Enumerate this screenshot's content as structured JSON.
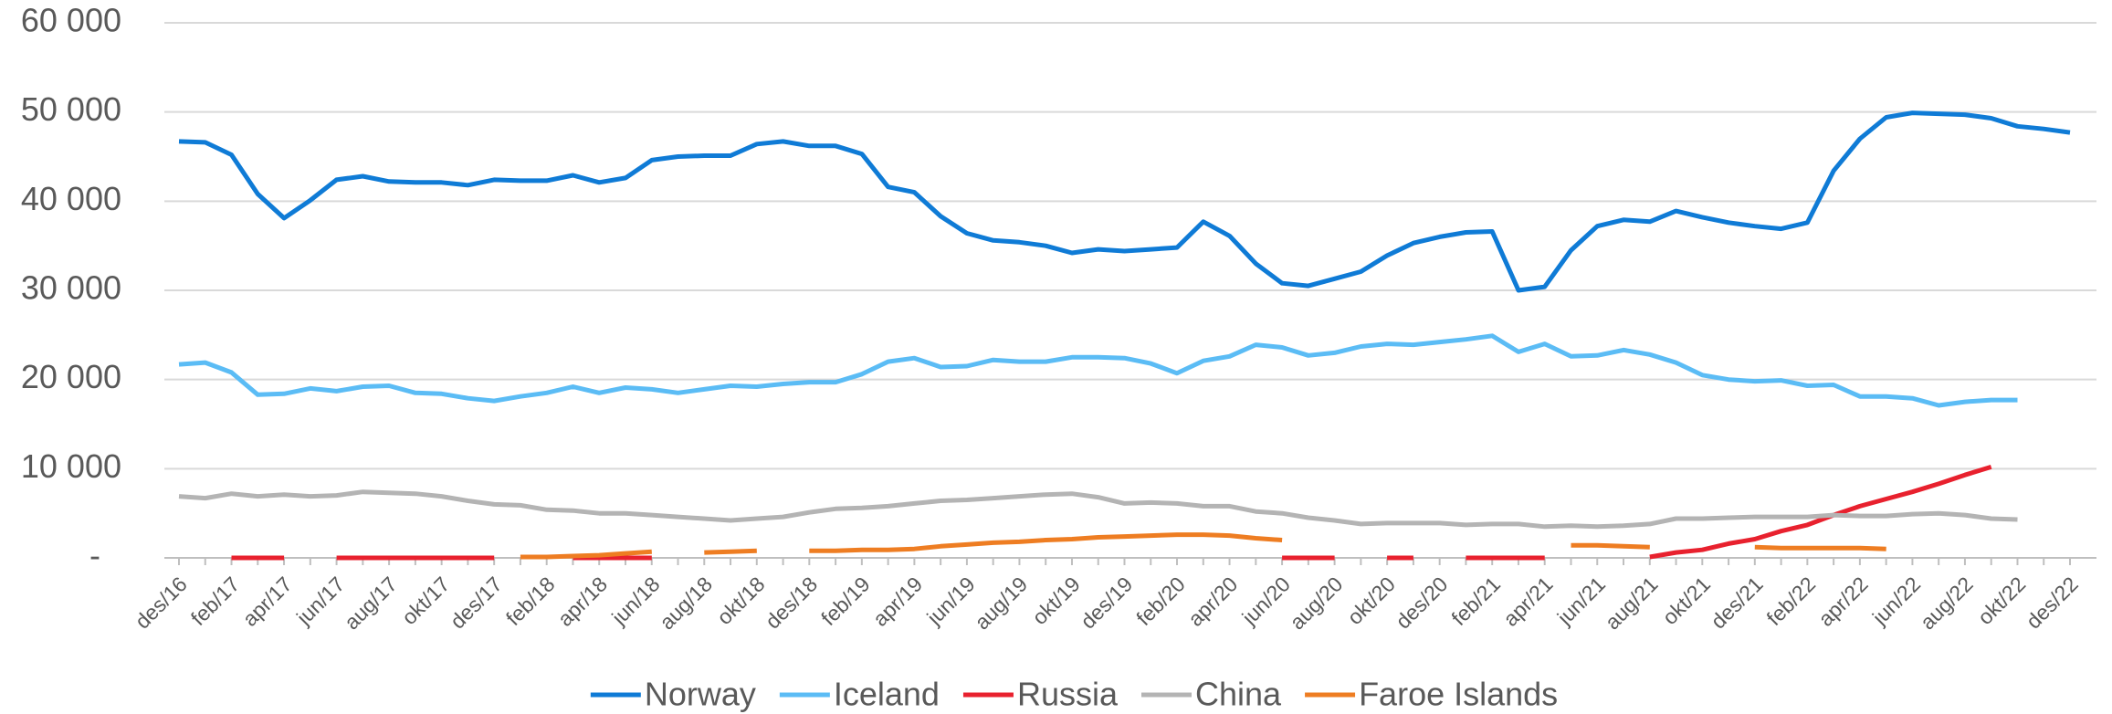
{
  "chart_data": {
    "type": "line",
    "categories": [
      "des/16",
      null,
      "feb/17",
      null,
      "apr/17",
      null,
      "jun/17",
      null,
      "aug/17",
      null,
      "okt/17",
      null,
      "des/17",
      null,
      "feb/18",
      null,
      "apr/18",
      null,
      "jun/18",
      null,
      "aug/18",
      null,
      "okt/18",
      null,
      "des/18",
      null,
      "feb/19",
      null,
      "apr/19",
      null,
      "jun/19",
      null,
      "aug/19",
      null,
      "okt/19",
      null,
      "des/19",
      null,
      "feb/20",
      null,
      "apr/20",
      null,
      "jun/20",
      null,
      "aug/20",
      null,
      "okt/20",
      null,
      "des/20",
      null,
      "feb/21",
      null,
      "apr/21",
      null,
      "jun/21",
      null,
      "aug/21",
      null,
      "okt/21",
      null,
      "des/21",
      null,
      "feb/22",
      null,
      "apr/22",
      null,
      "jun/22",
      null,
      "aug/22",
      null,
      "okt/22",
      null,
      "des/22"
    ],
    "series": [
      {
        "name": "Norway",
        "color": "#0f7bd6",
        "values": [
          46700,
          46600,
          45200,
          40800,
          38100,
          40100,
          42400,
          42800,
          42200,
          42100,
          42100,
          41800,
          42400,
          42300,
          42300,
          42900,
          42100,
          42600,
          44600,
          45000,
          45100,
          45100,
          46400,
          46700,
          46200,
          46200,
          45300,
          41600,
          41000,
          38300,
          36400,
          35600,
          35400,
          35000,
          34200,
          34600,
          34400,
          34600,
          34800,
          37700,
          36100,
          33000,
          30800,
          30500,
          31300,
          32100,
          33900,
          35300,
          36000,
          36500,
          36600,
          30000,
          30400,
          34500,
          37200,
          37900,
          37700,
          38900,
          38200,
          37600,
          37200,
          36900,
          37600,
          43400,
          47000,
          49400,
          49900,
          49800,
          49700,
          49300,
          48400,
          48100,
          47700
        ]
      },
      {
        "name": "Iceland",
        "color": "#5bbcf5",
        "values": [
          21700,
          21900,
          20800,
          18300,
          18400,
          19000,
          18700,
          19200,
          19300,
          18500,
          18400,
          17900,
          17600,
          18100,
          18500,
          19200,
          18500,
          19100,
          18900,
          18500,
          18900,
          19300,
          19200,
          19500,
          19700,
          19700,
          20600,
          22000,
          22400,
          21400,
          21500,
          22200,
          22000,
          22000,
          22500,
          22500,
          22400,
          21800,
          20700,
          22100,
          22600,
          23900,
          23600,
          22700,
          23000,
          23700,
          24000,
          23900,
          24200,
          24500,
          24900,
          23100,
          24000,
          22600,
          22700,
          23300,
          22800,
          21900,
          20500,
          20000,
          19800,
          19900,
          19300,
          19400,
          18100,
          18100,
          17900,
          17100,
          17500,
          17700,
          17700,
          null,
          null
        ]
      },
      {
        "name": "Russia",
        "color": "#e8212e",
        "values": [
          null,
          null,
          0,
          0,
          0,
          null,
          0,
          0,
          0,
          0,
          0,
          0,
          0,
          null,
          null,
          0,
          0,
          0,
          0,
          null,
          null,
          null,
          null,
          null,
          null,
          null,
          null,
          null,
          null,
          null,
          null,
          null,
          null,
          null,
          null,
          null,
          null,
          null,
          null,
          null,
          null,
          null,
          0,
          0,
          0,
          null,
          0,
          0,
          null,
          0,
          0,
          0,
          0,
          null,
          null,
          null,
          100,
          600,
          900,
          1600,
          2100,
          3000,
          3700,
          4800,
          5800,
          6600,
          7400,
          8300,
          9300,
          10200,
          null,
          null,
          null
        ]
      },
      {
        "name": "China",
        "color": "#b4b4b4",
        "values": [
          6900,
          6700,
          7200,
          6900,
          7100,
          6900,
          7000,
          7400,
          7300,
          7200,
          6900,
          6400,
          6000,
          5900,
          5400,
          5300,
          5000,
          5000,
          4800,
          4600,
          4400,
          4200,
          4400,
          4600,
          5100,
          5500,
          5600,
          5800,
          6100,
          6400,
          6500,
          6700,
          6900,
          7100,
          7200,
          6800,
          6100,
          6200,
          6100,
          5800,
          5800,
          5200,
          5000,
          4500,
          4200,
          3800,
          3900,
          3900,
          3900,
          3700,
          3800,
          3800,
          3500,
          3600,
          3500,
          3600,
          3800,
          4400,
          4400,
          4500,
          4600,
          4600,
          4600,
          4800,
          4700,
          4700,
          4900,
          5000,
          4800,
          4400,
          4300,
          null,
          null
        ]
      },
      {
        "name": "Faroe Islands",
        "color": "#ee7d22",
        "values": [
          null,
          null,
          null,
          null,
          null,
          null,
          null,
          null,
          null,
          null,
          null,
          null,
          null,
          100,
          100,
          200,
          300,
          500,
          700,
          null,
          600,
          700,
          800,
          null,
          800,
          800,
          900,
          900,
          1000,
          1300,
          1500,
          1700,
          1800,
          2000,
          2100,
          2300,
          2400,
          2500,
          2600,
          2600,
          2500,
          2200,
          2000,
          null,
          null,
          null,
          null,
          null,
          null,
          null,
          null,
          null,
          null,
          1400,
          1400,
          1300,
          1200,
          null,
          null,
          null,
          1200,
          1100,
          1100,
          1100,
          1100,
          1000,
          null,
          null,
          null,
          null,
          null,
          null,
          null
        ]
      }
    ],
    "ylim": [
      0,
      60000
    ],
    "yticks": [
      {
        "value": 0,
        "label": "-"
      },
      {
        "value": 10000,
        "label": "10 000"
      },
      {
        "value": 20000,
        "label": "20 000"
      },
      {
        "value": 30000,
        "label": "30 000"
      },
      {
        "value": 40000,
        "label": "40 000"
      },
      {
        "value": 50000,
        "label": "50 000"
      },
      {
        "value": 60000,
        "label": "60 000"
      }
    ],
    "grid": true,
    "legend": "bottom"
  }
}
